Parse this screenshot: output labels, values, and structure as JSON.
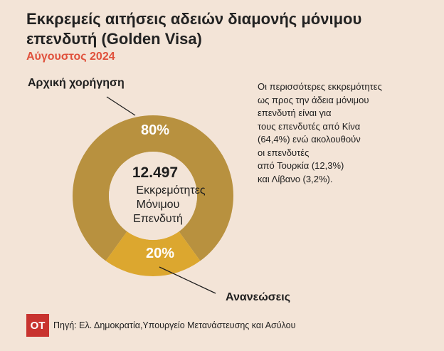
{
  "title": "Εκκρεμείς αιτήσεις αδειών διαμονής μόνιμου επενδυτή (Golden Visa)",
  "subtitle": "Αύγουστος 2024",
  "note_lines": [
    "Οι περισσότερες εκκρεμότητες",
    "ως προς την άδεια μόνιμου",
    "επενδυτή είναι για",
    "τους επενδυτές από Κίνα",
    "(64,4%) ενώ ακολουθούν",
    "οι επενδυτές",
    "από Τουρκία (12,3%)",
    "και Λίβανο (3,2%)."
  ],
  "center": {
    "total": "12.497",
    "line1": "Εκκρεμότητες",
    "line2": "Μόνιμου",
    "line3": "Επενδυτή"
  },
  "source": "Πηγή: Ελ. Δημοκρατία,Υπουργείο Μετανάστευσης και Ασύλου",
  "logo": "OT",
  "colors": {
    "background": "#f3e4d7",
    "initial": "#b8913f",
    "renewals": "#dca72f",
    "accent": "#e0513c"
  },
  "chart_data": {
    "type": "pie",
    "total": 12497,
    "categories": [
      "Αρχική χορήγηση",
      "Ανανεώσεις"
    ],
    "values": [
      80,
      20
    ],
    "data_labels": [
      "80%",
      "20%"
    ],
    "title": "Εκκρεμείς αιτήσεις αδειών διαμονής μόνιμου επενδυτή (Golden Visa)",
    "subtitle": "Αύγουστος 2024"
  }
}
